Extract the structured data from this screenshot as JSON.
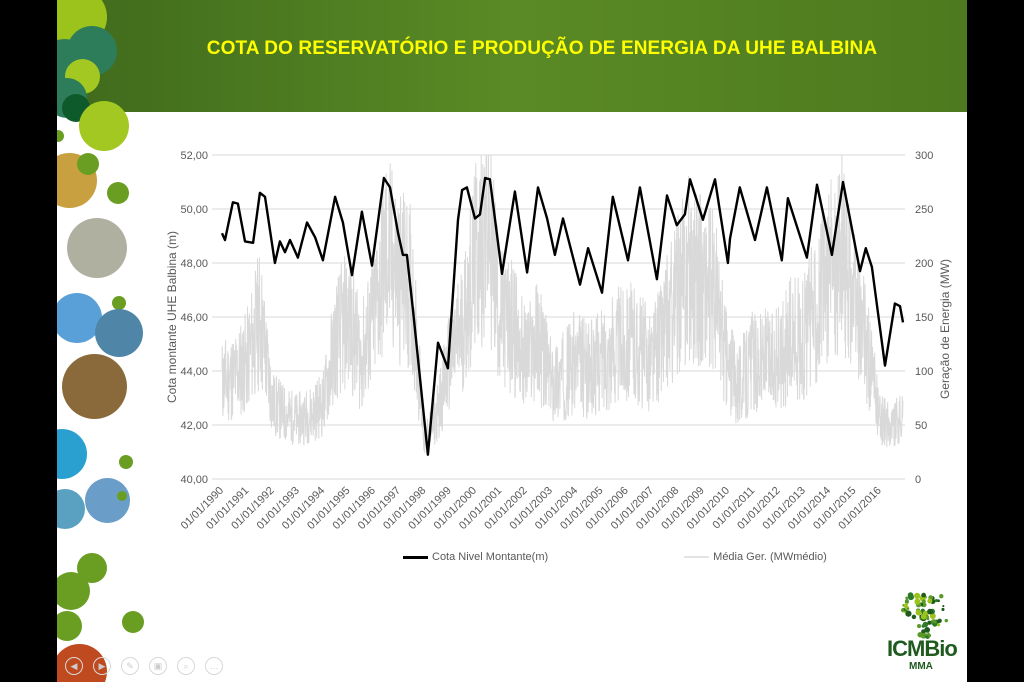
{
  "slide": {
    "title": "COTA DO RESERVATÓRIO E PRODUÇÃO DE ENERGIA DA UHE BALBINA",
    "logo": {
      "name": "ICMBio",
      "sub": "MMA"
    },
    "toolbar_icons": [
      "prev-icon",
      "next-icon",
      "pen-icon",
      "slides-icon",
      "zoom-icon",
      "more-icon"
    ]
  },
  "chart_data": {
    "type": "line",
    "title": "",
    "xlabel": "",
    "ylabel": "Cota  montante UHE Balbina  (m)",
    "y2label": "Geração de Energia (MW)",
    "ylim": [
      40,
      52
    ],
    "y2lim": [
      0,
      300
    ],
    "yticks": [
      "40,00",
      "42,00",
      "44,00",
      "46,00",
      "48,00",
      "50,00",
      "52,00"
    ],
    "y2ticks": [
      "0",
      "50",
      "100",
      "150",
      "200",
      "250",
      "300"
    ],
    "xlim": [
      1990,
      2017
    ],
    "xticks": [
      "01/01/1990",
      "01/01/1991",
      "01/01/1992",
      "01/01/1993",
      "01/01/1994",
      "01/01/1995",
      "01/01/1996",
      "01/01/1997",
      "01/01/1998",
      "01/01/1999",
      "01/01/2000",
      "01/01/2001",
      "01/01/2002",
      "01/01/2003",
      "01/01/2004",
      "01/01/2005",
      "01/01/2006",
      "01/01/2007",
      "01/01/2008",
      "01/01/2009",
      "01/01/2010",
      "01/01/2011",
      "01/01/2012",
      "01/01/2013",
      "01/01/2014",
      "01/01/2015",
      "01/01/2016"
    ],
    "grid": true,
    "legend_position": "bottom",
    "series": [
      {
        "name": "Cota Nivel Montante(m)",
        "axis": "left",
        "color": "#000000",
        "points": [
          [
            1990.0,
            49.1
          ],
          [
            1990.12,
            48.85
          ],
          [
            1990.43,
            50.25
          ],
          [
            1990.63,
            50.2
          ],
          [
            1990.91,
            48.8
          ],
          [
            1991.23,
            48.75
          ],
          [
            1991.5,
            50.6
          ],
          [
            1991.7,
            50.45
          ],
          [
            1992.09,
            48.0
          ],
          [
            1992.29,
            48.8
          ],
          [
            1992.49,
            48.4
          ],
          [
            1992.69,
            48.85
          ],
          [
            1993.0,
            48.2
          ],
          [
            1993.36,
            49.5
          ],
          [
            1993.68,
            48.95
          ],
          [
            1993.99,
            48.1
          ],
          [
            1994.47,
            50.45
          ],
          [
            1994.78,
            49.5
          ],
          [
            1995.14,
            47.55
          ],
          [
            1995.53,
            49.9
          ],
          [
            1995.93,
            47.9
          ],
          [
            1996.4,
            51.15
          ],
          [
            1996.64,
            50.8
          ],
          [
            1996.96,
            49.1
          ],
          [
            1997.15,
            48.3
          ],
          [
            1997.31,
            48.3
          ],
          [
            1997.55,
            46.25
          ],
          [
            1998.14,
            40.9
          ],
          [
            1998.54,
            45.05
          ],
          [
            1998.93,
            44.1
          ],
          [
            1999.33,
            49.6
          ],
          [
            1999.49,
            50.7
          ],
          [
            1999.68,
            50.8
          ],
          [
            2000.0,
            49.65
          ],
          [
            2000.2,
            49.8
          ],
          [
            2000.4,
            51.15
          ],
          [
            2000.59,
            51.1
          ],
          [
            2001.07,
            47.6
          ],
          [
            2001.58,
            50.65
          ],
          [
            2002.06,
            47.65
          ],
          [
            2002.49,
            50.8
          ],
          [
            2002.85,
            49.65
          ],
          [
            2003.16,
            48.3
          ],
          [
            2003.48,
            49.65
          ],
          [
            2004.15,
            47.2
          ],
          [
            2004.47,
            48.55
          ],
          [
            2005.02,
            46.9
          ],
          [
            2005.45,
            50.45
          ],
          [
            2006.05,
            48.1
          ],
          [
            2006.52,
            50.8
          ],
          [
            2007.19,
            47.4
          ],
          [
            2007.59,
            50.5
          ],
          [
            2007.98,
            49.4
          ],
          [
            2008.3,
            49.8
          ],
          [
            2008.5,
            51.1
          ],
          [
            2009.01,
            49.6
          ],
          [
            2009.49,
            51.1
          ],
          [
            2010.0,
            48.0
          ],
          [
            2010.08,
            48.9
          ],
          [
            2010.47,
            50.8
          ],
          [
            2011.07,
            48.85
          ],
          [
            2011.54,
            50.8
          ],
          [
            2012.13,
            48.1
          ],
          [
            2012.37,
            50.4
          ],
          [
            2013.12,
            48.2
          ],
          [
            2013.52,
            50.9
          ],
          [
            2014.11,
            48.3
          ],
          [
            2014.55,
            51.0
          ],
          [
            2015.22,
            47.7
          ],
          [
            2015.45,
            48.55
          ],
          [
            2015.69,
            47.85
          ],
          [
            2016.21,
            44.2
          ],
          [
            2016.6,
            46.5
          ],
          [
            2016.8,
            46.4
          ],
          [
            2016.92,
            45.8
          ]
        ]
      },
      {
        "name": "Média Ger. (MWmédio)",
        "axis": "right",
        "color": "#d9d9d9",
        "points": [
          [
            1990.0,
            90
          ],
          [
            1990.5,
            95
          ],
          [
            1991.0,
            110
          ],
          [
            1991.5,
            150
          ],
          [
            1992.0,
            70
          ],
          [
            1992.5,
            60
          ],
          [
            1993.0,
            55
          ],
          [
            1993.5,
            60
          ],
          [
            1994.0,
            70
          ],
          [
            1994.5,
            130
          ],
          [
            1995.0,
            150
          ],
          [
            1995.5,
            110
          ],
          [
            1996.0,
            150
          ],
          [
            1996.5,
            210
          ],
          [
            1997.0,
            190
          ],
          [
            1997.5,
            175
          ],
          [
            1998.0,
            35
          ],
          [
            1998.5,
            60
          ],
          [
            1999.0,
            110
          ],
          [
            1999.5,
            140
          ],
          [
            2000.0,
            200
          ],
          [
            2000.5,
            240
          ],
          [
            2001.0,
            150
          ],
          [
            2001.5,
            140
          ],
          [
            2002.0,
            110
          ],
          [
            2002.5,
            130
          ],
          [
            2003.0,
            90
          ],
          [
            2003.5,
            95
          ],
          [
            2004.0,
            110
          ],
          [
            2004.5,
            100
          ],
          [
            2005.0,
            110
          ],
          [
            2005.5,
            120
          ],
          [
            2006.0,
            130
          ],
          [
            2006.5,
            120
          ],
          [
            2007.0,
            110
          ],
          [
            2007.5,
            140
          ],
          [
            2008.0,
            170
          ],
          [
            2008.5,
            200
          ],
          [
            2009.0,
            180
          ],
          [
            2009.5,
            170
          ],
          [
            2010.0,
            100
          ],
          [
            2010.5,
            90
          ],
          [
            2011.0,
            110
          ],
          [
            2011.5,
            110
          ],
          [
            2012.0,
            110
          ],
          [
            2012.5,
            130
          ],
          [
            2013.0,
            130
          ],
          [
            2013.5,
            160
          ],
          [
            2014.0,
            190
          ],
          [
            2014.5,
            210
          ],
          [
            2015.0,
            160
          ],
          [
            2015.5,
            120
          ],
          [
            2016.0,
            55
          ],
          [
            2016.5,
            50
          ],
          [
            2016.92,
            55
          ]
        ]
      }
    ]
  }
}
